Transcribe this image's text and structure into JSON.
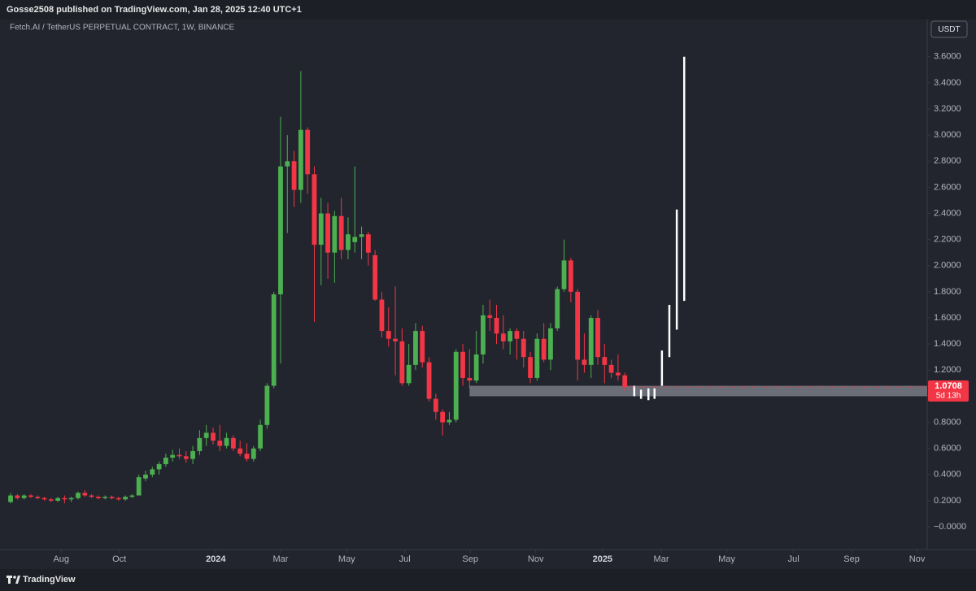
{
  "header": {
    "published": "Gosse2508 published on TradingView.com, Jan 28, 2025 12:40 UTC+1"
  },
  "footer": {
    "brand": "TradingView"
  },
  "chart_data": {
    "type": "candlestick",
    "title": "Fetch.AI / TetherUS PERPETUAL CONTRACT, 1W, BINANCE",
    "currency": "USDT",
    "up_color": "#4caf50",
    "down_color": "#f23645",
    "open": [
      0.19,
      0.24,
      0.22,
      0.24,
      0.23,
      0.22,
      0.21,
      0.2,
      0.22,
      0.21,
      0.22,
      0.26,
      0.24,
      0.23,
      0.22,
      0.23,
      0.22,
      0.21,
      0.23,
      0.24,
      0.37,
      0.4,
      0.44,
      0.48,
      0.53,
      0.55,
      0.54,
      0.52,
      0.58,
      0.68,
      0.72,
      0.66,
      0.62,
      0.68,
      0.6,
      0.56,
      0.52,
      0.6,
      0.78,
      1.08,
      1.78,
      2.76,
      2.8,
      2.58,
      3.04,
      2.7,
      2.16,
      2.4,
      2.1,
      2.38,
      2.12,
      2.18,
      2.22,
      2.24,
      2.08,
      1.74,
      1.5,
      1.44,
      1.42,
      1.1,
      1.24,
      1.5,
      1.26,
      0.98,
      0.88,
      0.8,
      0.82,
      1.34,
      1.14,
      1.12,
      1.32,
      1.62,
      1.6,
      1.48,
      1.42,
      1.5,
      1.44,
      1.3,
      1.14,
      1.44,
      1.28,
      1.52,
      1.82,
      2.04,
      1.8,
      1.28,
      1.24,
      1.6,
      1.3,
      1.24,
      1.18,
      1.16
    ],
    "high": [
      0.26,
      0.25,
      0.25,
      0.25,
      0.24,
      0.23,
      0.22,
      0.23,
      0.24,
      0.23,
      0.27,
      0.28,
      0.25,
      0.24,
      0.24,
      0.24,
      0.23,
      0.24,
      0.25,
      0.4,
      0.43,
      0.46,
      0.5,
      0.56,
      0.59,
      0.6,
      0.58,
      0.62,
      0.74,
      0.78,
      0.76,
      0.78,
      0.72,
      0.7,
      0.66,
      0.64,
      0.62,
      0.82,
      1.1,
      1.8,
      3.14,
      3.0,
      2.88,
      3.49,
      3.06,
      2.76,
      2.52,
      2.48,
      2.42,
      2.52,
      2.37,
      2.76,
      2.3,
      2.26,
      2.12,
      1.8,
      1.68,
      1.84,
      1.52,
      1.4,
      1.56,
      1.54,
      1.3,
      1.02,
      0.9,
      0.88,
      1.36,
      1.4,
      1.36,
      1.5,
      1.7,
      1.74,
      1.7,
      1.62,
      1.52,
      1.52,
      1.5,
      1.34,
      1.48,
      1.56,
      1.56,
      1.84,
      2.2,
      2.06,
      1.82,
      1.48,
      1.62,
      1.66,
      1.4,
      1.28,
      1.32,
      1.18
    ],
    "low": [
      0.18,
      0.21,
      0.21,
      0.22,
      0.21,
      0.2,
      0.19,
      0.19,
      0.18,
      0.19,
      0.21,
      0.23,
      0.22,
      0.21,
      0.21,
      0.21,
      0.2,
      0.2,
      0.22,
      0.24,
      0.35,
      0.38,
      0.4,
      0.46,
      0.5,
      0.52,
      0.49,
      0.48,
      0.55,
      0.62,
      0.63,
      0.58,
      0.6,
      0.58,
      0.54,
      0.5,
      0.5,
      0.58,
      0.75,
      1.06,
      1.25,
      2.25,
      2.45,
      2.48,
      2.55,
      1.57,
      1.85,
      1.9,
      1.87,
      2.05,
      2.05,
      2.1,
      2.05,
      2.0,
      1.73,
      1.45,
      1.38,
      1.16,
      1.08,
      1.08,
      1.2,
      1.22,
      0.96,
      0.82,
      0.7,
      0.78,
      0.8,
      1.08,
      1.06,
      1.1,
      1.25,
      1.5,
      1.4,
      1.36,
      1.32,
      1.28,
      1.22,
      1.1,
      1.12,
      1.26,
      1.2,
      1.5,
      1.8,
      1.72,
      1.12,
      1.18,
      1.14,
      1.24,
      1.1,
      1.14,
      1.12,
      1.04
    ],
    "close": [
      0.24,
      0.22,
      0.24,
      0.23,
      0.22,
      0.21,
      0.2,
      0.22,
      0.21,
      0.22,
      0.26,
      0.24,
      0.23,
      0.22,
      0.23,
      0.22,
      0.21,
      0.23,
      0.24,
      0.38,
      0.4,
      0.44,
      0.48,
      0.53,
      0.55,
      0.54,
      0.52,
      0.58,
      0.68,
      0.72,
      0.66,
      0.62,
      0.68,
      0.6,
      0.56,
      0.52,
      0.6,
      0.78,
      1.08,
      1.78,
      2.76,
      2.8,
      2.58,
      3.04,
      2.7,
      2.16,
      2.4,
      2.1,
      2.38,
      2.12,
      2.24,
      2.22,
      2.24,
      2.1,
      1.74,
      1.5,
      1.44,
      1.42,
      1.1,
      1.24,
      1.5,
      1.26,
      0.98,
      0.88,
      0.8,
      0.82,
      1.34,
      1.14,
      1.12,
      1.32,
      1.62,
      1.6,
      1.48,
      1.42,
      1.5,
      1.44,
      1.3,
      1.14,
      1.44,
      1.28,
      1.52,
      1.82,
      2.04,
      1.8,
      1.28,
      1.24,
      1.6,
      1.3,
      1.24,
      1.18,
      1.16,
      1.0708
    ],
    "last_price": 1.0708,
    "countdown": "5d 13h",
    "zone": {
      "start_x": 68,
      "low": 1.0,
      "high": 1.08,
      "color": "#787b86"
    },
    "projection": {
      "color": "#ffffff",
      "x": [
        92.4,
        93.4,
        94.5,
        95.4,
        96.5,
        97.6,
        98.7,
        99.8
      ],
      "low": [
        1.0,
        0.98,
        0.97,
        0.98,
        1.08,
        1.3,
        1.51,
        1.73
      ],
      "high": [
        1.08,
        1.05,
        1.06,
        1.06,
        1.35,
        1.7,
        2.43,
        3.6
      ]
    },
    "xlim": [
      -1.57,
      135.8
    ],
    "xticks": [
      {
        "value": 7.5,
        "label": "Aug"
      },
      {
        "value": 16.1,
        "label": "Oct"
      },
      {
        "value": 30.4,
        "label": "2024"
      },
      {
        "value": 40.0,
        "label": "Mar"
      },
      {
        "value": 49.8,
        "label": "May"
      },
      {
        "value": 58.4,
        "label": "Jul"
      },
      {
        "value": 68.1,
        "label": "Sep"
      },
      {
        "value": 77.8,
        "label": "Nov"
      },
      {
        "value": 87.7,
        "label": "2025"
      },
      {
        "value": 96.4,
        "label": "Mar"
      },
      {
        "value": 106.1,
        "label": "May"
      },
      {
        "value": 116.0,
        "label": "Jul"
      },
      {
        "value": 124.6,
        "label": "Sep"
      },
      {
        "value": 134.3,
        "label": "Nov"
      }
    ],
    "ylim": [
      -0.174,
      3.885
    ],
    "yticks": [
      {
        "value": 0,
        "label": "−0.0000"
      },
      {
        "value": 0.2,
        "label": "0.2000"
      },
      {
        "value": 0.4,
        "label": "0.4000"
      },
      {
        "value": 0.6,
        "label": "0.6000"
      },
      {
        "value": 0.8,
        "label": "0.8000"
      },
      {
        "value": 1.0,
        "label": "1.0000"
      },
      {
        "value": 1.2,
        "label": "1.2000"
      },
      {
        "value": 1.4,
        "label": "1.4000"
      },
      {
        "value": 1.6,
        "label": "1.6000"
      },
      {
        "value": 1.8,
        "label": "1.8000"
      },
      {
        "value": 2.0,
        "label": "2.0000"
      },
      {
        "value": 2.2,
        "label": "2.2000"
      },
      {
        "value": 2.4,
        "label": "2.4000"
      },
      {
        "value": 2.6,
        "label": "2.6000"
      },
      {
        "value": 2.8,
        "label": "2.8000"
      },
      {
        "value": 3.0,
        "label": "3.0000"
      },
      {
        "value": 3.2,
        "label": "3.2000"
      },
      {
        "value": 3.4,
        "label": "3.4000"
      },
      {
        "value": 3.6,
        "label": "3.6000"
      }
    ]
  }
}
